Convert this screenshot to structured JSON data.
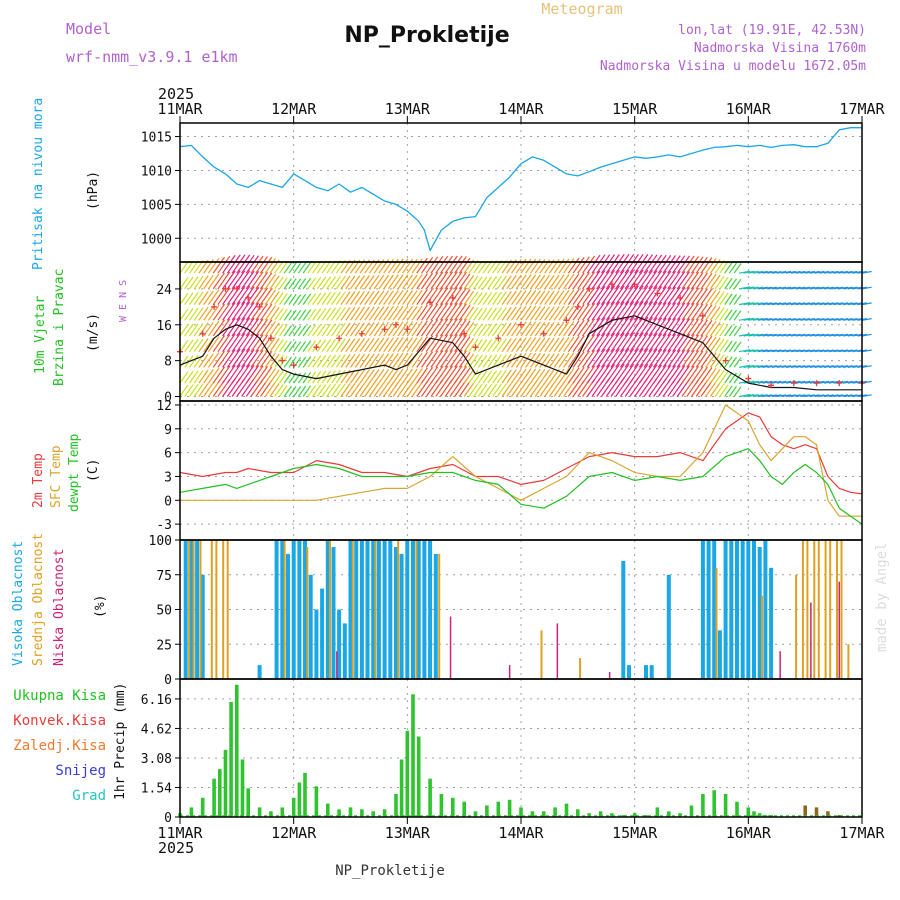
{
  "header": {
    "model_label": "Model",
    "model_name": "wrf-nmm_v3.9.1 e1km",
    "station": "NP_Prokletije",
    "product": "Meteogram",
    "coords": "lon,lat (19.91E, 42.53N)",
    "elevation": "Nadmorska Visina 1760m",
    "model_elevation": "Nadmorska Visina u modelu 1672.05m",
    "credit": "made by Angel",
    "footer_station": "NP_Prokletije",
    "year_top": "2025",
    "year_bottom": "2025"
  },
  "colors": {
    "pressure": "#1aa7e6",
    "t2m": "#e83b3b",
    "sfc": "#d8a530",
    "dew": "#22c022",
    "high_cloud": "#1aa7e6",
    "mid_cloud": "#e0a020",
    "low_cloud": "#cc2277",
    "precip": "#2fc42f",
    "snow_label": "#3b3bdd",
    "hail_label": "#2bc2c2",
    "model_text": "#b060d0"
  },
  "chart_data": [
    {
      "type": "line",
      "name": "pressure",
      "ylabel_main": "Pritisak na nivou mora",
      "unit": "(hPa)",
      "categories": [
        "11MAR",
        "12MAR",
        "13MAR",
        "14MAR",
        "15MAR",
        "16MAR",
        "17MAR"
      ],
      "yticks": [
        1000,
        1005,
        1010,
        1015
      ],
      "ylim": [
        996.5,
        1017
      ],
      "x": [
        0,
        0.1,
        0.2,
        0.3,
        0.4,
        0.5,
        0.6,
        0.7,
        0.8,
        0.9,
        1.0,
        1.1,
        1.2,
        1.3,
        1.4,
        1.5,
        1.6,
        1.7,
        1.8,
        1.9,
        2.0,
        2.1,
        2.15,
        2.2,
        2.3,
        2.4,
        2.5,
        2.6,
        2.7,
        2.8,
        2.9,
        3.0,
        3.1,
        3.2,
        3.3,
        3.4,
        3.5,
        3.6,
        3.7,
        3.8,
        3.9,
        4.0,
        4.1,
        4.2,
        4.3,
        4.4,
        4.5,
        4.6,
        4.7,
        4.8,
        4.9,
        5.0,
        5.1,
        5.2,
        5.3,
        5.4,
        5.5,
        5.6,
        5.7,
        5.8,
        5.9,
        6.0
      ],
      "values": [
        1013.5,
        1013.7,
        1012,
        1010.5,
        1009.5,
        1008,
        1007.5,
        1008.5,
        1008,
        1007.5,
        1009.5,
        1008.5,
        1007.5,
        1007,
        1008,
        1006.8,
        1007.5,
        1006.5,
        1005.5,
        1005,
        1004,
        1002.5,
        1001.2,
        998.2,
        1001.2,
        1002.5,
        1003,
        1003.2,
        1006,
        1007.5,
        1009,
        1011,
        1012,
        1011.5,
        1010.5,
        1009.5,
        1009.2,
        1009.8,
        1010.5,
        1011,
        1011.5,
        1012,
        1011.8,
        1012,
        1012.3,
        1012,
        1012.5,
        1013,
        1013.4,
        1013.5,
        1013.7,
        1013.5,
        1013.7,
        1013.4,
        1013.7,
        1013.8,
        1013.5,
        1013.5,
        1014,
        1016,
        1016.3,
        1016.3
      ]
    },
    {
      "type": "line",
      "name": "wind",
      "ylabel_main": "10m Vjetar",
      "ylabel_sub": "Brzina i Pravac",
      "unit": "(m/s)",
      "compass": "W E N S",
      "yticks": [
        0,
        8,
        16,
        24
      ],
      "ylim": [
        -1,
        30
      ],
      "x": [
        0,
        0.2,
        0.3,
        0.4,
        0.5,
        0.6,
        0.7,
        0.8,
        0.9,
        1.0,
        1.2,
        1.4,
        1.6,
        1.8,
        1.9,
        2.0,
        2.2,
        2.4,
        2.5,
        2.6,
        2.8,
        3.0,
        3.2,
        3.4,
        3.5,
        3.6,
        3.8,
        4.0,
        4.2,
        4.4,
        4.6,
        4.8,
        5.0,
        5.2,
        5.4,
        5.6,
        5.8,
        6.0
      ],
      "values": [
        7,
        9,
        13,
        15,
        16,
        15,
        13,
        9,
        6,
        5,
        4,
        5,
        6,
        7,
        6,
        7,
        13,
        12,
        9,
        5,
        7,
        9,
        7,
        5,
        9,
        14,
        17,
        18,
        16,
        14,
        12,
        6,
        3,
        2,
        2,
        1.5,
        1.5,
        1.5
      ],
      "gust": [
        10,
        14,
        20,
        24,
        24,
        22,
        20,
        13,
        8,
        7,
        11,
        13,
        14,
        15,
        16,
        15,
        21,
        22,
        14,
        11,
        13,
        16,
        14,
        17,
        20,
        24,
        25,
        25,
        23,
        22,
        18,
        8,
        4,
        2.5,
        3,
        3,
        3,
        3
      ]
    },
    {
      "type": "line",
      "name": "temperature",
      "ylabel_main": "2m Temp",
      "ylabel_sub1": "SFC Temp",
      "ylabel_sub2": "dewpt Temp",
      "unit": "(C)",
      "yticks": [
        -3,
        0,
        3,
        6,
        9,
        12
      ],
      "ylim": [
        -5,
        12.5
      ],
      "x": [
        0,
        0.2,
        0.4,
        0.5,
        0.6,
        0.8,
        1.0,
        1.2,
        1.4,
        1.6,
        1.8,
        2.0,
        2.2,
        2.4,
        2.6,
        2.8,
        3.0,
        3.2,
        3.4,
        3.6,
        3.8,
        4.0,
        4.2,
        4.4,
        4.6,
        4.8,
        5.0,
        5.1,
        5.2,
        5.3,
        5.4,
        5.5,
        5.6,
        5.7,
        5.8,
        5.9,
        6.0
      ],
      "series": [
        {
          "name": "2m",
          "values": [
            3.5,
            3,
            3.5,
            3.5,
            4,
            3.5,
            3.5,
            5,
            4.5,
            3.5,
            3.5,
            3,
            4,
            4.5,
            3,
            3,
            2,
            2.5,
            4,
            5.5,
            6,
            5.5,
            5.5,
            6,
            5,
            9,
            11,
            10.5,
            8,
            7,
            6.5,
            7,
            6.5,
            3,
            1.5,
            1,
            0.8
          ]
        },
        {
          "name": "sfc",
          "values": [
            0,
            0,
            0,
            0,
            0,
            0,
            0,
            0,
            0.5,
            1,
            1.5,
            1.5,
            3,
            5.5,
            3,
            1.5,
            0,
            1.5,
            3,
            6,
            5,
            3.5,
            3,
            3,
            6,
            12,
            10,
            7,
            5,
            6.5,
            8,
            8,
            7,
            0,
            -2,
            -2,
            -2
          ]
        },
        {
          "name": "dew",
          "values": [
            1,
            1.5,
            2,
            1.5,
            2,
            3,
            4,
            4.5,
            4,
            3,
            3,
            3,
            3.5,
            3.5,
            2.5,
            2,
            -0.5,
            -1,
            0.5,
            3,
            3.5,
            2.5,
            3,
            2.5,
            3,
            5.5,
            6.5,
            5,
            3,
            2,
            3.5,
            4.5,
            3.5,
            2,
            -1,
            -2,
            -3
          ]
        }
      ]
    },
    {
      "type": "bar",
      "name": "clouds",
      "ylabel_main": "Visoka Oblacnost",
      "ylabel_sub1": "Srednja Oblacnost",
      "ylabel_sub2": "Niska Oblacnost",
      "unit": "(%)",
      "yticks": [
        0,
        25,
        50,
        75,
        100
      ],
      "ylim": [
        0,
        100
      ],
      "series": [
        {
          "name": "high",
          "x": [
            0.05,
            0.1,
            0.15,
            0.2,
            0.7,
            0.85,
            0.9,
            0.95,
            1.0,
            1.05,
            1.1,
            1.15,
            1.2,
            1.25,
            1.3,
            1.35,
            1.4,
            1.45,
            1.5,
            1.55,
            1.6,
            1.65,
            1.7,
            1.75,
            1.8,
            1.85,
            1.9,
            1.95,
            2.0,
            2.05,
            2.1,
            2.15,
            2.2,
            2.25,
            3.9,
            3.95,
            4.1,
            4.15,
            4.3,
            4.6,
            4.65,
            4.7,
            4.75,
            4.8,
            4.85,
            4.9,
            4.95,
            5.0,
            5.05,
            5.1,
            5.15,
            5.2
          ],
          "values": [
            100,
            100,
            100,
            75,
            10,
            100,
            100,
            90,
            100,
            100,
            100,
            75,
            50,
            65,
            100,
            95,
            50,
            40,
            100,
            100,
            100,
            100,
            100,
            100,
            100,
            100,
            95,
            90,
            100,
            100,
            100,
            100,
            100,
            90,
            85,
            10,
            10,
            10,
            75,
            100,
            100,
            100,
            35,
            100,
            100,
            100,
            100,
            100,
            100,
            95,
            100,
            80
          ]
        },
        {
          "name": "mid",
          "x": [
            0.08,
            0.12,
            0.18,
            0.28,
            0.32,
            0.38,
            0.42,
            0.92,
            1.12,
            1.32,
            1.52,
            1.72,
            1.92,
            2.08,
            2.28,
            3.18,
            3.52,
            4.72,
            5.12,
            5.42,
            5.48,
            5.52,
            5.58,
            5.62,
            5.68,
            5.72,
            5.78,
            5.82,
            5.88
          ],
          "values": [
            100,
            100,
            100,
            100,
            100,
            100,
            100,
            100,
            95,
            100,
            100,
            100,
            100,
            100,
            90,
            35,
            15,
            80,
            60,
            75,
            100,
            100,
            100,
            100,
            100,
            100,
            100,
            100,
            25
          ]
        },
        {
          "name": "low",
          "x": [
            1.38,
            2.38,
            2.9,
            3.32,
            3.78,
            5.28,
            5.55,
            5.8
          ],
          "values": [
            20,
            45,
            10,
            40,
            5,
            20,
            55,
            70
          ]
        }
      ]
    },
    {
      "type": "bar",
      "name": "precipitation",
      "ylabel_main": "1hr Precip (mm)",
      "legend": [
        "Ukupna Kisa",
        "Konvek.Kisa",
        "Zaledj.Kisa",
        "Snijeg",
        "Grad"
      ],
      "yticks": [
        0,
        1.54,
        3.08,
        4.62,
        6.16
      ],
      "ylim": [
        0,
        7.2
      ],
      "x": [
        0,
        0.1,
        0.2,
        0.3,
        0.35,
        0.4,
        0.45,
        0.5,
        0.55,
        0.6,
        0.7,
        0.8,
        0.9,
        1.0,
        1.05,
        1.1,
        1.2,
        1.3,
        1.4,
        1.5,
        1.6,
        1.7,
        1.8,
        1.9,
        1.95,
        2.0,
        2.05,
        2.1,
        2.2,
        2.3,
        2.4,
        2.5,
        2.6,
        2.7,
        2.8,
        2.9,
        3.0,
        3.1,
        3.2,
        3.3,
        3.4,
        3.5,
        3.6,
        3.7,
        3.8,
        3.9,
        4.0,
        4.1,
        4.2,
        4.3,
        4.4,
        4.5,
        4.6,
        4.7,
        4.8,
        4.9,
        5.0,
        5.05,
        5.1,
        5.15,
        5.2,
        5.3,
        5.4,
        5.5,
        5.6,
        5.7,
        5.8
      ],
      "values": [
        0.2,
        0.5,
        1,
        2,
        2.5,
        3.5,
        6,
        6.9,
        3,
        1.5,
        0.5,
        0.3,
        0.5,
        1,
        1.8,
        2.3,
        1.6,
        0.7,
        0.4,
        0.5,
        0.4,
        0.3,
        0.4,
        1.2,
        3,
        4.5,
        6.4,
        4.2,
        2,
        1.2,
        1,
        0.8,
        0.3,
        0.6,
        0.8,
        0.9,
        0.5,
        0.3,
        0.3,
        0.5,
        0.7,
        0.4,
        0.2,
        0.3,
        0.2,
        0.1,
        0.2,
        0.1,
        0.5,
        0.3,
        0.2,
        0.6,
        1.2,
        1.4,
        1.2,
        0.8,
        0.5,
        0.3,
        0.2,
        0.1,
        0.1,
        0,
        0,
        0.6,
        0.5,
        0.3,
        0.1
      ]
    }
  ]
}
